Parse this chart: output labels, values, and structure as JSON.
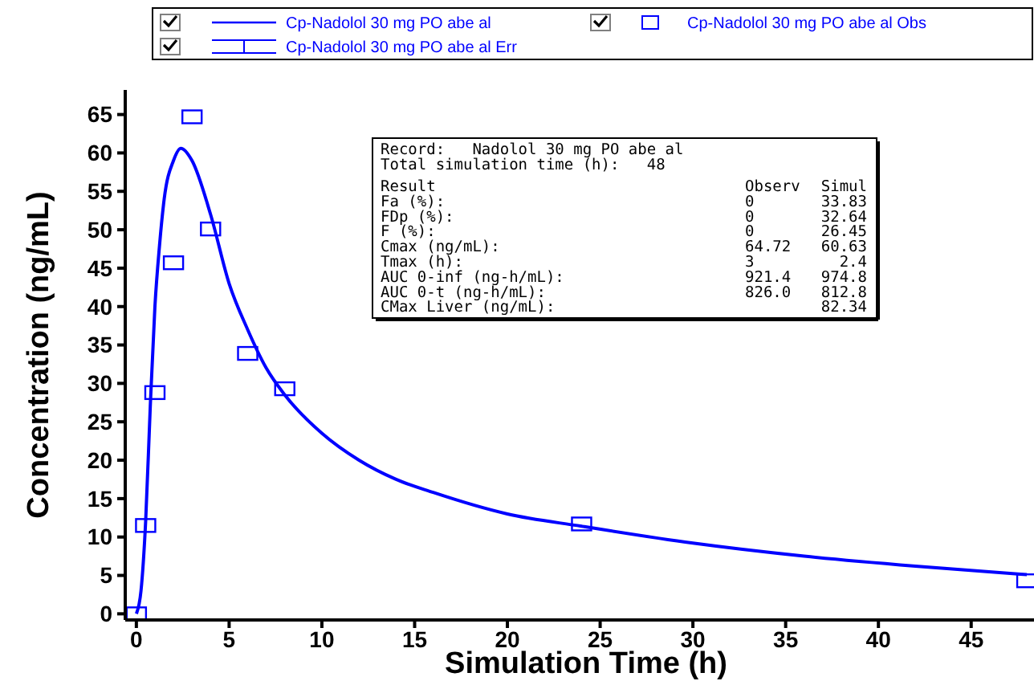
{
  "chart_data": {
    "type": "line",
    "xlabel": "Simulation Time (h)",
    "ylabel": "Concentration (ng/mL)",
    "xlim": [
      -0.6,
      48.3
    ],
    "ylim": [
      -0.8,
      68.2
    ],
    "xticks": [
      0,
      5,
      10,
      15,
      20,
      25,
      30,
      35,
      40,
      45
    ],
    "yticks": [
      0,
      5,
      10,
      15,
      20,
      25,
      30,
      35,
      40,
      45,
      50,
      55,
      60,
      65
    ],
    "grid": false,
    "legend": "top",
    "series": [
      {
        "name": "Cp-Nadolol 30 mg PO abe al",
        "color": "#0000ff",
        "line_style": "solid",
        "marker": "none",
        "x": [
          0,
          0.25,
          0.5,
          0.75,
          1,
          1.25,
          1.5,
          2,
          2.4,
          3,
          4,
          5,
          6,
          7,
          8,
          10,
          12,
          14,
          16,
          20,
          24,
          30,
          36,
          42,
          48
        ],
        "values": [
          0,
          3,
          12,
          27,
          40,
          48,
          54,
          59,
          60.6,
          59,
          52,
          43,
          37,
          32,
          28.5,
          23.5,
          20,
          17.5,
          15.8,
          13,
          11.4,
          9.2,
          7.5,
          6.2,
          5.1
        ]
      },
      {
        "name": "Cp-Nadolol 30 mg PO abe al Obs",
        "type": "scatter",
        "color": "#0000ff",
        "marker": "square",
        "x": [
          0,
          0.5,
          1,
          2,
          3,
          4,
          6,
          8,
          24,
          48
        ],
        "values": [
          0,
          11.5,
          28.8,
          45.7,
          64.7,
          50.1,
          33.9,
          29.3,
          11.7,
          4.3
        ]
      },
      {
        "name": "Cp-Nadolol 30 mg PO abe al Err",
        "type": "scatter",
        "marker": "none",
        "color": "#0000ff"
      }
    ],
    "annotations": [
      "Record:   Nadolol 30 mg PO abe al",
      "Total simulation time (h):   48",
      "Result",
      "Observ",
      "Simul",
      "Fa (%):",
      "0",
      "33.83",
      "FDp (%):",
      "0",
      "32.64",
      "F (%):",
      "0",
      "26.45",
      "Cmax (ng/mL):",
      "64.72",
      "60.63",
      "Tmax (h):",
      "3",
      "2.4",
      "AUC 0-inf (ng-h/mL):",
      "921.4",
      "974.8",
      "AUC 0-t (ng-h/mL):",
      "826.0",
      "812.8",
      "CMax Liver (ng/mL):",
      "82.34"
    ]
  }
}
